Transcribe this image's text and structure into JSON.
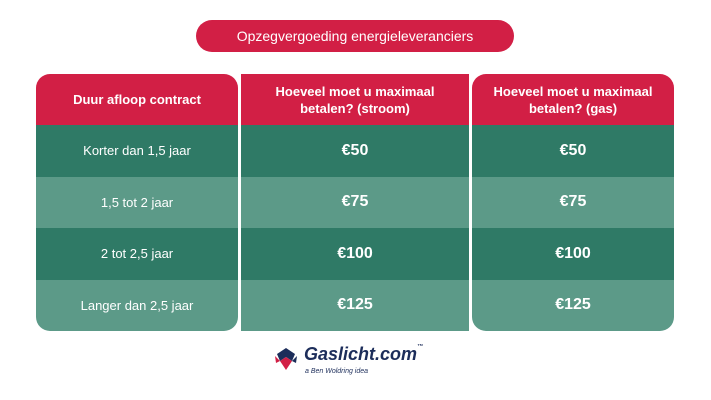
{
  "title": "Opzegvergoeding energieleveranciers",
  "columns": {
    "duration": {
      "header": "Duur afloop contract",
      "rows": [
        "Korter dan 1,5 jaar",
        "1,5 tot 2 jaar",
        "2 tot 2,5 jaar",
        "Langer dan 2,5 jaar"
      ]
    },
    "electricity": {
      "header": "Hoeveel moet u maximaal betalen? (stroom)",
      "rows": [
        "€50",
        "€75",
        "€100",
        "€125"
      ]
    },
    "gas": {
      "header": "Hoeveel moet u maximaal betalen? (gas)",
      "rows": [
        "€50",
        "€75",
        "€100",
        "€125"
      ]
    }
  },
  "logo": {
    "name": "Gaslicht.com",
    "trademark": "™",
    "tagline": "a Ben Woldring idea"
  },
  "colors": {
    "header": "#d21f45",
    "row_dark": "#2f7a66",
    "row_light": "#5c9a88",
    "logo_text": "#1c2d5a"
  },
  "icon": "gaslicht-logo-icon"
}
